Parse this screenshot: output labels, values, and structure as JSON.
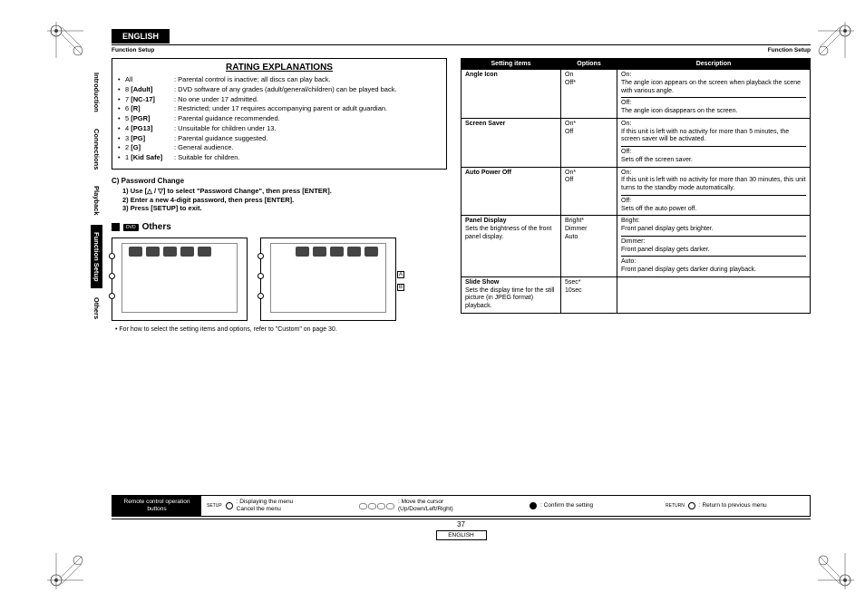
{
  "header": {
    "language": "ENGLISH",
    "section": "Function Setup"
  },
  "side_tabs": [
    {
      "label": "Introduction",
      "active": false
    },
    {
      "label": "Connections",
      "active": false
    },
    {
      "label": "Playback",
      "active": false
    },
    {
      "label": "Function Setup",
      "active": true
    },
    {
      "label": "Others",
      "active": false
    }
  ],
  "rating": {
    "title": "RATING EXPLANATIONS",
    "rows": [
      {
        "bullet": "•",
        "label": "All",
        "desc": ": Parental control is inactive; all discs can play back."
      },
      {
        "bullet": "•",
        "label": "8 [Adult]",
        "desc": ": DVD software of any grades (adult/general/children) can be played back."
      },
      {
        "bullet": "•",
        "label": "7 [NC-17]",
        "desc": ": No one under 17 admitted."
      },
      {
        "bullet": "•",
        "label": "6 [R]",
        "desc": ": Restricted; under 17 requires accompanying parent or adult guardian."
      },
      {
        "bullet": "•",
        "label": "5 [PGR]",
        "desc": ": Parental guidance recommended."
      },
      {
        "bullet": "•",
        "label": "4 [PG13]",
        "desc": ": Unsuitable for children under 13."
      },
      {
        "bullet": "•",
        "label": "3 [PG]",
        "desc": ": Parental guidance suggested."
      },
      {
        "bullet": "•",
        "label": "2 [G]",
        "desc": ": General audience."
      },
      {
        "bullet": "•",
        "label": "1 [Kid Safe]",
        "desc": ": Suitable for children."
      }
    ]
  },
  "password": {
    "heading": "C)  Password Change",
    "steps": [
      "1)  Use [△ / ▽] to select \"Password Change\", then press [ENTER].",
      "2)  Enter a new 4-digit password, then press [ENTER].",
      "3)  Press [SETUP] to exit."
    ]
  },
  "others": {
    "badge": "DVD",
    "title": "Others"
  },
  "screens_hint": "•   For how to select the setting items and options, refer to \"Custom\" on page 30.",
  "screen_labels": {
    "a": "A",
    "b": "B"
  },
  "table": {
    "headers": [
      "Setting items",
      "Options",
      "Description"
    ],
    "rows": [
      {
        "item": "Angle Icon",
        "sub": "",
        "opts": "On\nOff*",
        "desc": "On:\nThe angle icon appears on the screen when playback the scene with various angle.\n—\nOff:\nThe angle icon disappears on the screen."
      },
      {
        "item": "Screen Saver",
        "sub": "",
        "opts": "On*\nOff",
        "desc": "On:\nIf this unit is left with no activity for more than 5 minutes, the screen saver will be activated.\n—\nOff:\nSets off the screen saver."
      },
      {
        "item": "Auto Power Off",
        "sub": "",
        "opts": "On*\nOff",
        "desc": "On:\nIf this unit is left with no activity for more than 30 minutes, this unit turns to the standby mode automatically.\n—\nOff:\nSets off the auto power off."
      },
      {
        "item": "Panel Display",
        "sub": "Sets the brightness of the front panel display.",
        "opts": "Bright*\nDimmer\nAuto",
        "desc": "Bright:\nFront panel display gets brighter.\n—\nDimmer:\nFront panel display gets darker.\n—\nAuto:\nFront panel display gets darker during playback."
      },
      {
        "item": "Slide Show",
        "sub": "Sets the display time for the still picture (in JPEG format) playback.",
        "opts": "5sec*\n10sec",
        "desc": ""
      }
    ]
  },
  "footer": {
    "left": "Remote control operation buttons",
    "cols": [
      {
        "label": "SETUP",
        "text1": ":  Displaying the menu",
        "text2": "   Cancel the menu"
      },
      {
        "label": "",
        "text1": ":  Move the cursor",
        "text2": "   (Up/Down/Left/Right)"
      },
      {
        "label": "ENTER",
        "text1": ":  Confirm the setting",
        "text2": ""
      },
      {
        "label": "RETURN",
        "text1": ":  Return to previous menu",
        "text2": ""
      }
    ],
    "page": "37",
    "english": "ENGLISH"
  },
  "colors": {
    "black": "#000000",
    "white": "#ffffff",
    "grey": "#888888",
    "icon": "#444444"
  }
}
